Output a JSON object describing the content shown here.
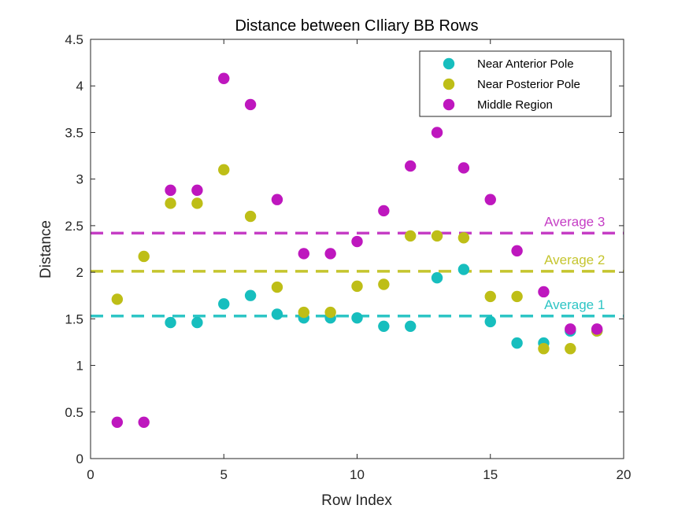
{
  "chart_data": {
    "type": "scatter",
    "title": "Distance between CIliary BB Rows",
    "xlabel": "Row Index",
    "ylabel": "Distance",
    "xlim": [
      0,
      20
    ],
    "ylim": [
      0,
      4.5
    ],
    "xticks": [
      "0",
      "5",
      "10",
      "15",
      "20"
    ],
    "yticks": [
      "0",
      "0.5",
      "1",
      "1.5",
      "2",
      "2.5",
      "3",
      "3.5",
      "4",
      "4.5"
    ],
    "grid": false,
    "legend_position": "top-right",
    "series": [
      {
        "name": "Near Anterior Pole",
        "color": "#17bebe",
        "points": [
          [
            3,
            1.46
          ],
          [
            4,
            1.46
          ],
          [
            5,
            1.66
          ],
          [
            6,
            1.75
          ],
          [
            7,
            1.55
          ],
          [
            8,
            1.51
          ],
          [
            9,
            1.51
          ],
          [
            10,
            1.51
          ],
          [
            11,
            1.42
          ],
          [
            12,
            1.42
          ],
          [
            13,
            1.94
          ],
          [
            14,
            2.03
          ],
          [
            15,
            1.47
          ],
          [
            16,
            1.24
          ],
          [
            17,
            1.24
          ],
          [
            18,
            1.37
          ],
          [
            19,
            1.37
          ]
        ]
      },
      {
        "name": "Near Posterior Pole",
        "color": "#bebe17",
        "points": [
          [
            1,
            1.71
          ],
          [
            2,
            2.17
          ],
          [
            3,
            2.74
          ],
          [
            4,
            2.74
          ],
          [
            5,
            3.1
          ],
          [
            6,
            2.6
          ],
          [
            7,
            1.84
          ],
          [
            8,
            1.57
          ],
          [
            9,
            1.57
          ],
          [
            10,
            1.85
          ],
          [
            11,
            1.87
          ],
          [
            12,
            2.39
          ],
          [
            13,
            2.39
          ],
          [
            14,
            2.37
          ],
          [
            15,
            1.74
          ],
          [
            16,
            1.74
          ],
          [
            17,
            1.18
          ],
          [
            18,
            1.18
          ],
          [
            19,
            1.37
          ]
        ]
      },
      {
        "name": "Middle Region",
        "color": "#be17be",
        "points": [
          [
            1,
            0.39
          ],
          [
            2,
            0.39
          ],
          [
            3,
            2.88
          ],
          [
            4,
            2.88
          ],
          [
            5,
            4.08
          ],
          [
            6,
            3.8
          ],
          [
            7,
            2.78
          ],
          [
            8,
            2.2
          ],
          [
            9,
            2.2
          ],
          [
            10,
            2.33
          ],
          [
            11,
            2.66
          ],
          [
            12,
            3.14
          ],
          [
            13,
            3.5
          ],
          [
            14,
            3.12
          ],
          [
            15,
            2.78
          ],
          [
            16,
            2.23
          ],
          [
            17,
            1.79
          ],
          [
            18,
            1.39
          ],
          [
            19,
            1.39
          ]
        ]
      }
    ],
    "averages": [
      {
        "label": "Average 1",
        "value": 1.53,
        "color": "#2ec5c5"
      },
      {
        "label": "Average 2",
        "value": 2.01,
        "color": "#c5c52e"
      },
      {
        "label": "Average 3",
        "value": 2.42,
        "color": "#c53ec5"
      }
    ]
  }
}
